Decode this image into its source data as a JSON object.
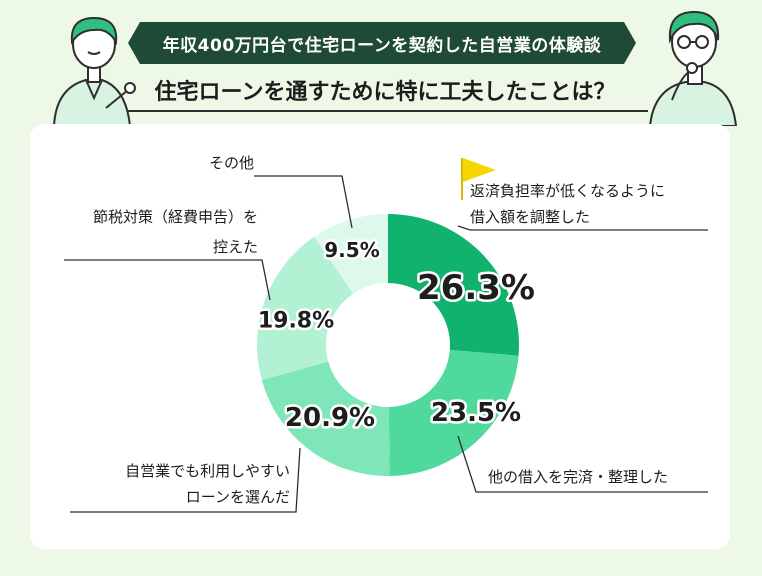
{
  "header": {
    "banner": "年収400万円台で住宅ローンを契約した自営業の体験談",
    "question": "住宅ローンを通すために特に工夫したことは？"
  },
  "colors": {
    "background": "#eef8e6",
    "banner": "#1f4a36",
    "flag": "#f5d800"
  },
  "chart_data": {
    "type": "pie",
    "style": "donut",
    "slices": [
      {
        "label_lines": [
          "返済負担率が低くなるように",
          "借入額を調整した"
        ],
        "value": 26.3,
        "display": "26.3%",
        "color": "#10b26e",
        "flag": true
      },
      {
        "label_lines": [
          "他の借入を完済・整理した"
        ],
        "value": 23.5,
        "display": "23.5%",
        "color": "#4fd99c"
      },
      {
        "label_lines": [
          "自営業でも利用しやすい",
          "ローンを選んだ"
        ],
        "value": 20.9,
        "display": "20.9%",
        "color": "#7ee6b8"
      },
      {
        "label_lines": [
          "節税対策（経費申告）を",
          "控えた"
        ],
        "value": 19.8,
        "display": "19.8%",
        "color": "#b3f1d5"
      },
      {
        "label_lines": [
          "その他"
        ],
        "value": 9.5,
        "display": "9.5%",
        "color": "#dcf9ec"
      }
    ]
  }
}
